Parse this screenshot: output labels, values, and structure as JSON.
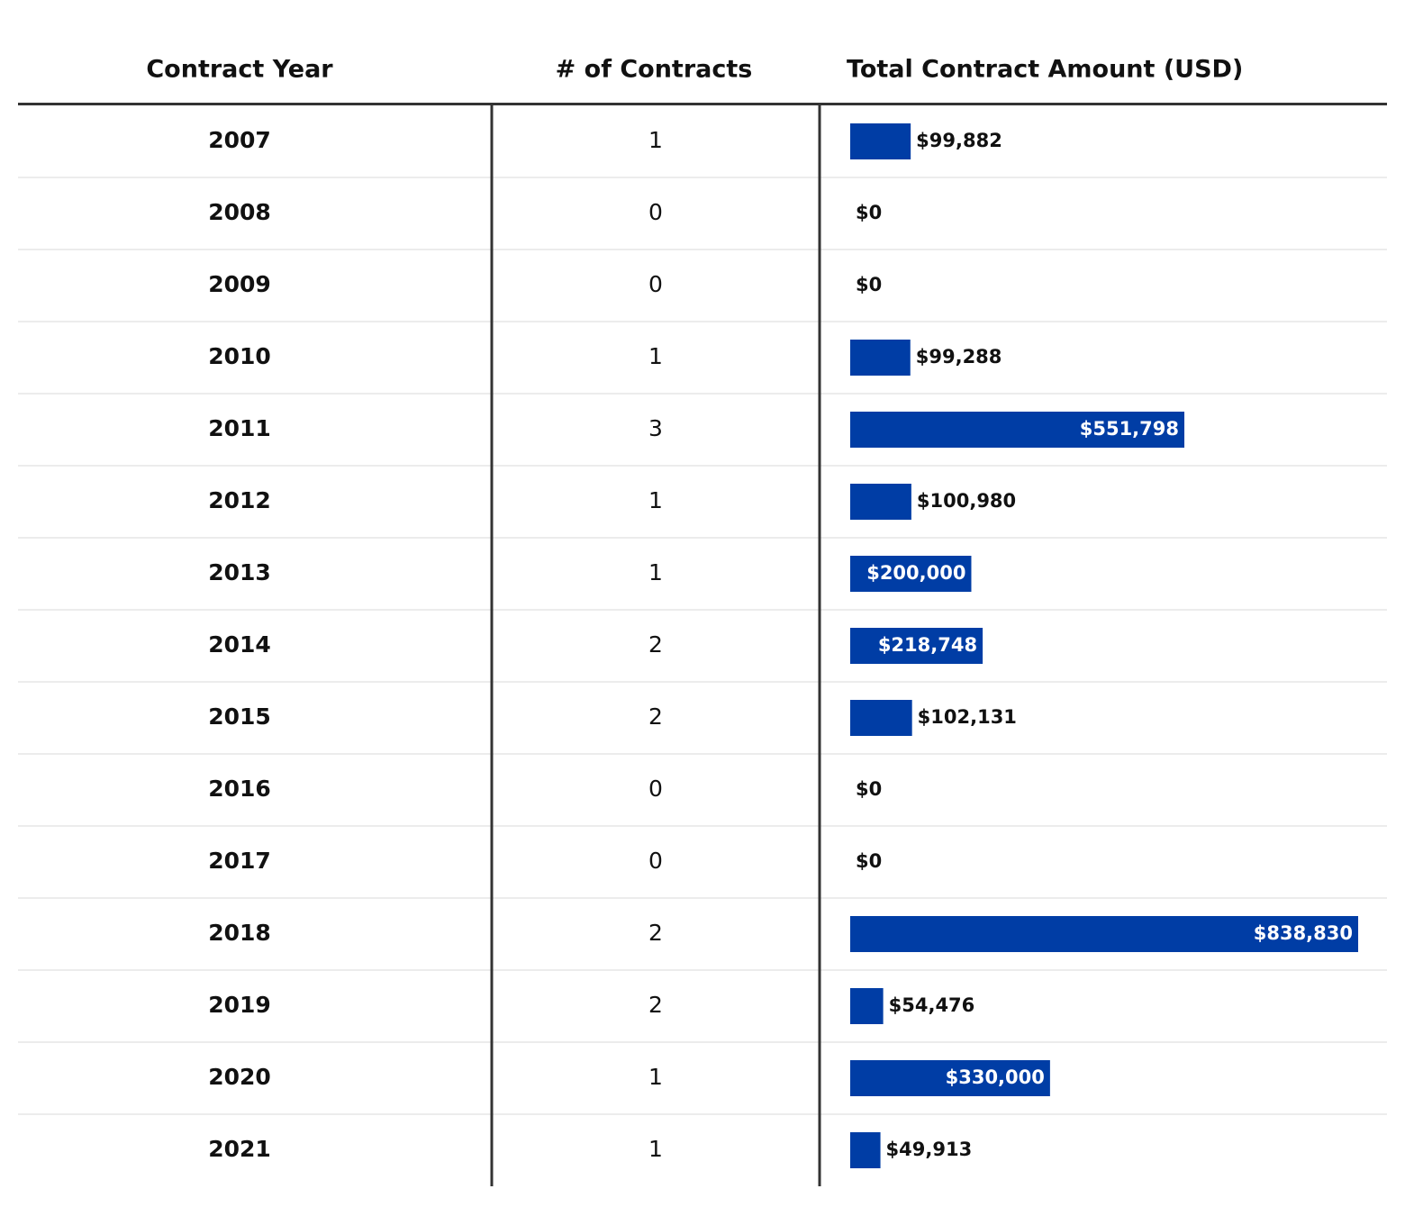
{
  "table": {
    "columns": [
      "Contract Year",
      "# of Contracts",
      "Total Contract Amount (USD)"
    ],
    "years": [
      2007,
      2008,
      2009,
      2010,
      2011,
      2012,
      2013,
      2014,
      2015,
      2016,
      2017,
      2018,
      2019,
      2020,
      2021
    ],
    "contracts": [
      1,
      0,
      0,
      1,
      3,
      1,
      1,
      2,
      2,
      0,
      0,
      2,
      2,
      1,
      1
    ],
    "amounts": [
      99882,
      0,
      0,
      99288,
      551798,
      100980,
      200000,
      218748,
      102131,
      0,
      0,
      838830,
      54476,
      330000,
      49913
    ],
    "amount_labels": [
      "$99,882",
      "$0",
      "$0",
      "$99,288",
      "$551,798",
      "$100,980",
      "$200,000",
      "$218,748",
      "$102,131",
      "$0",
      "$0",
      "$838,830",
      "$54,476",
      "$330,000",
      "$49,913"
    ],
    "bar_color": "#003da5"
  }
}
